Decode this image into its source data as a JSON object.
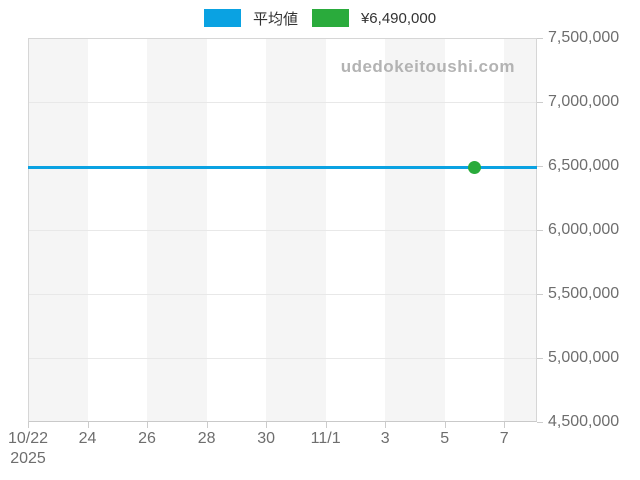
{
  "chart_data": {
    "type": "line",
    "title": "",
    "watermark": "udedokeitoushi.com",
    "legend": [
      {
        "label": "平均値",
        "color": "#0aa2e2"
      },
      {
        "label": "¥6,490,000",
        "color": "#2aab3c"
      }
    ],
    "y_axis": {
      "min": 4500000,
      "max": 7500000,
      "step": 500000,
      "tick_labels": [
        "4,500,000",
        "5,000,000",
        "5,500,000",
        "6,000,000",
        "6,500,000",
        "7,000,000",
        "7,500,000"
      ]
    },
    "x_axis": {
      "year": "2025",
      "max_days": 17.1,
      "band_interval_days": 2,
      "ticks": [
        {
          "day": 0,
          "label": "10/22",
          "year": "2025"
        },
        {
          "day": 2,
          "label": "24"
        },
        {
          "day": 4,
          "label": "26"
        },
        {
          "day": 6,
          "label": "28"
        },
        {
          "day": 8,
          "label": "30"
        },
        {
          "day": 10,
          "label": "11/1"
        },
        {
          "day": 12,
          "label": "3"
        },
        {
          "day": 14,
          "label": "5"
        },
        {
          "day": 16,
          "label": "7"
        }
      ]
    },
    "series": [
      {
        "name": "平均値",
        "type": "horizontal-line",
        "value": 6490000,
        "color": "#0aa2e2"
      }
    ],
    "point": {
      "date": "11/6",
      "day": 15,
      "value": 6490000,
      "color": "#2aab3c"
    },
    "grid": "horizontal-only",
    "legend_position": "top-center",
    "y_labels_position": "right"
  }
}
